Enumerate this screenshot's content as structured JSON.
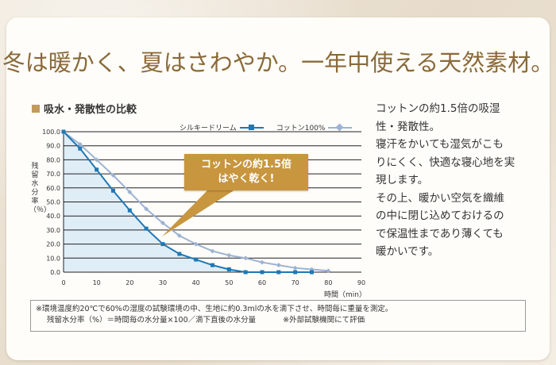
{
  "headline": "冬は暖かく、夏はさわやか。一年中使える天然素材。",
  "colors": {
    "accent": "#c39a5b",
    "headline": "#8a6a3a",
    "silky_line": "#1f78b4",
    "cotton_line": "#9db3d4",
    "silky_fill": "#d9eaf7",
    "callout_bg": "#c8963f"
  },
  "chart_data": {
    "type": "line",
    "title": "吸水・発散性の比較",
    "xlabel": "時間（min）",
    "ylabel": "残留水分率（％）",
    "xlim": [
      0,
      90
    ],
    "ylim": [
      0,
      100
    ],
    "x_ticks": [
      "0",
      "10",
      "20",
      "30",
      "40",
      "50",
      "60",
      "70",
      "80",
      "90"
    ],
    "y_ticks": [
      "0.0",
      "10.0",
      "20.0",
      "30.0",
      "40.0",
      "50.0",
      "60.0",
      "70.0",
      "80.0",
      "90.0",
      "100.0"
    ],
    "grid": "horizontal",
    "legend_position": "top-right",
    "series": [
      {
        "name": "シルキードリーム",
        "x": [
          0,
          5,
          10,
          15,
          20,
          25,
          30,
          35,
          40,
          45,
          50,
          55,
          60,
          65,
          70,
          75
        ],
        "y": [
          100,
          88,
          73,
          58,
          44,
          31,
          20,
          13,
          9,
          5,
          2,
          0,
          0,
          0,
          0,
          0
        ]
      },
      {
        "name": "コットン100%",
        "x": [
          0,
          5,
          10,
          15,
          20,
          25,
          30,
          35,
          40,
          45,
          50,
          55,
          60,
          65,
          70,
          75,
          80
        ],
        "y": [
          100,
          91,
          80,
          69,
          57,
          45,
          35,
          26,
          20,
          15,
          12,
          10,
          7,
          5,
          3,
          2,
          1
        ]
      }
    ],
    "annotation": [
      "コットンの約1.5倍",
      "はやく乾く!"
    ]
  },
  "side_text": [
    "コットンの約1.5倍の吸湿",
    "性・発散性。",
    "寝汗をかいても湿気がこも",
    "りにくく、快適な寝心地を実",
    "現します。",
    "その上、暖かい空気を織維",
    "の中に閉じ込めておけるの",
    "で保温性まであり薄くても",
    "暖かいです。"
  ],
  "notes": {
    "line1": "※環境温度約20℃で60%の湿度の試験環境の中、生地に約0.3mlの水を滴下させ、時間毎に重量を測定。",
    "line2a": "残留水分率（%）＝時間毎の水分量×100／滴下直後の水分量",
    "line2b": "※外部試験機関にて評価"
  }
}
